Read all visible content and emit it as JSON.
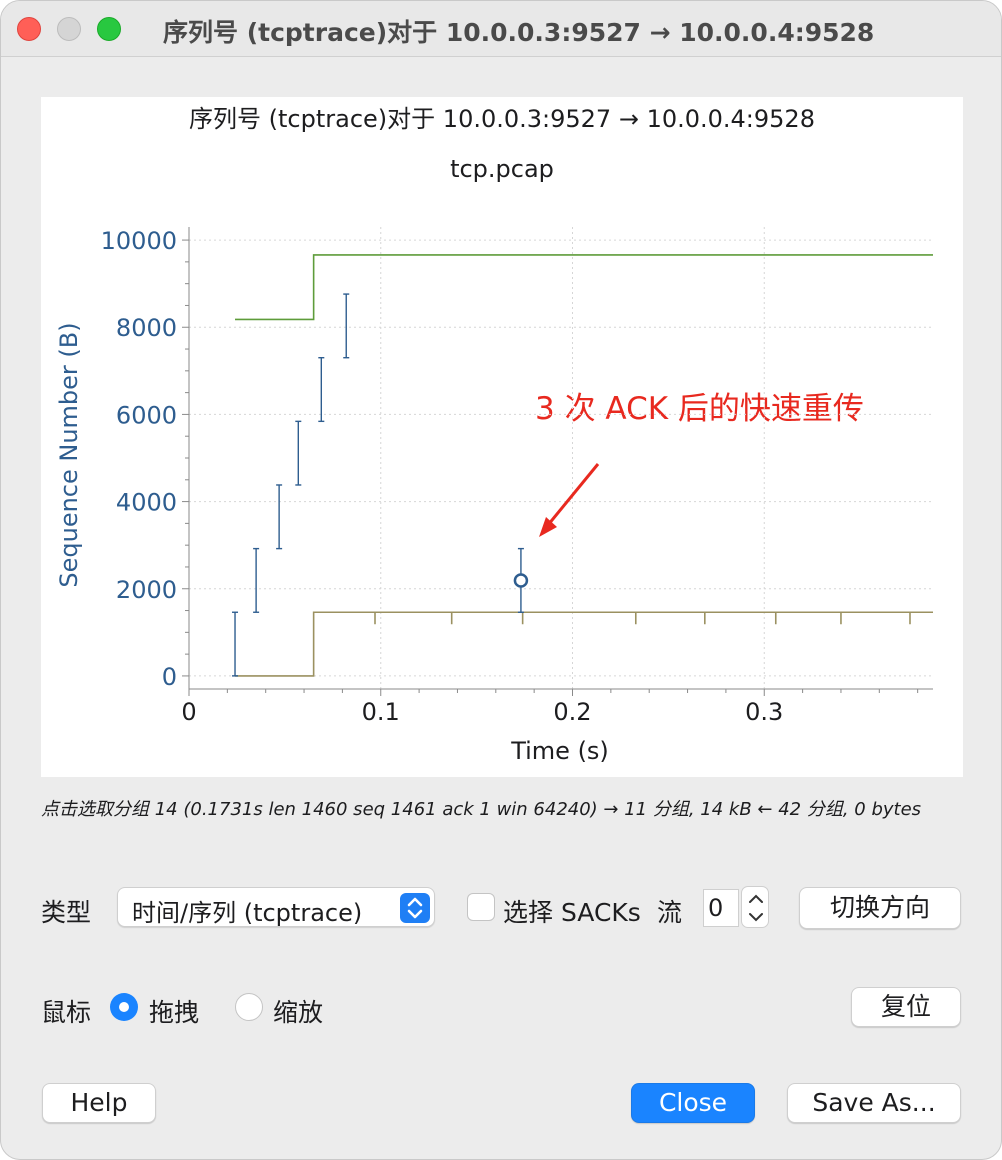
{
  "window": {
    "title": "序列号 (tcptrace)对于 10.0.0.3:9527 → 10.0.0.4:9528",
    "buttons": [
      "close-window",
      "minimize-window",
      "zoom-window"
    ]
  },
  "graph": {
    "title": "序列号 (tcptrace)对于 10.0.0.3:9527 → 10.0.0.4:9528",
    "subtitle": "tcp.pcap",
    "annotation": "3 次 ACK 后的快速重传",
    "annotation_color": "#e8291f"
  },
  "chart_data": {
    "type": "scatter",
    "title": "序列号 (tcptrace)对于 10.0.0.3:9527 → 10.0.0.4:9528",
    "subtitle": "tcp.pcap",
    "xlabel": "Time (s)",
    "ylabel": "Sequence Number (B)",
    "xlim": [
      0,
      0.388
    ],
    "ylim": [
      -300,
      10300
    ],
    "xticks": [
      {
        "value": 0,
        "label": "0"
      },
      {
        "value": 0.1,
        "label": "0.1"
      },
      {
        "value": 0.2,
        "label": "0.2"
      },
      {
        "value": 0.3,
        "label": "0.3"
      }
    ],
    "yticks": [
      {
        "value": 0,
        "label": "0"
      },
      {
        "value": 2000,
        "label": "2000"
      },
      {
        "value": 4000,
        "label": "4000"
      },
      {
        "value": 6000,
        "label": "6000"
      },
      {
        "value": 8000,
        "label": "8000"
      },
      {
        "value": 10000,
        "label": "10000"
      }
    ],
    "grid": true,
    "colors": {
      "segments": "#2e5d8f",
      "window": "#5e9c3a",
      "ack": "#9b9160",
      "axis": "#2e5d8f"
    },
    "segments": [
      {
        "t": 0.024,
        "seq_start": 1,
        "seq_end": 1461
      },
      {
        "t": 0.035,
        "seq_start": 1461,
        "seq_end": 2921
      },
      {
        "t": 0.047,
        "seq_start": 2921,
        "seq_end": 4381
      },
      {
        "t": 0.057,
        "seq_start": 4381,
        "seq_end": 5841
      },
      {
        "t": 0.069,
        "seq_start": 5841,
        "seq_end": 7301
      },
      {
        "t": 0.082,
        "seq_start": 7301,
        "seq_end": 8761
      },
      {
        "t": 0.1731,
        "seq_start": 1461,
        "seq_end": 2921
      }
    ],
    "selected_segment": {
      "t": 0.1731,
      "seq": 2190
    },
    "receive_window": [
      {
        "t": 0.024,
        "seq": 8180
      },
      {
        "t": 0.065,
        "seq": 8180
      },
      {
        "t": 0.065,
        "seq": 9660
      },
      {
        "t": 0.388,
        "seq": 9660
      }
    ],
    "ack_line": [
      {
        "t": 0.024,
        "seq": 0
      },
      {
        "t": 0.065,
        "seq": 0
      },
      {
        "t": 0.065,
        "seq": 1461
      },
      {
        "t": 0.388,
        "seq": 1461
      }
    ],
    "dup_ack_times": [
      0.097,
      0.137,
      0.174,
      0.233,
      0.269,
      0.306,
      0.34,
      0.376
    ]
  },
  "status": {
    "text": "点击选取分组 14 (0.1731s len 1460 seq 1461 ack 1 win 64240) → 11 分组, 14 kB ← 42 分组, 0 bytes"
  },
  "controls": {
    "type_label": "类型",
    "type_value": "时间/序列 (tcptrace)",
    "sacks_label": "选择 SACKs",
    "sacks_checked": false,
    "stream_label": "流",
    "stream_value": "0",
    "switch_direction": "切换方向",
    "mouse_label": "鼠标",
    "drag_label": "拖拽",
    "zoom_label": "缩放",
    "mouse_mode": "drag",
    "reset": "复位",
    "help": "Help",
    "close": "Close",
    "save_as": "Save As..."
  }
}
